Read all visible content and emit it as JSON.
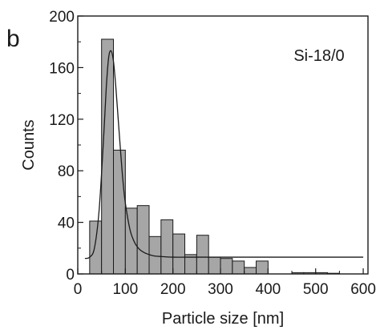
{
  "chart_data": {
    "type": "bar",
    "panel_label": "b",
    "annotation": "Si-18/0",
    "xlabel": "Particle size [nm]",
    "ylabel": "Counts",
    "xlim": [
      0,
      610
    ],
    "ylim": [
      0,
      200
    ],
    "xticks": [
      0,
      100,
      200,
      300,
      400,
      500,
      600
    ],
    "yticks": [
      0,
      40,
      80,
      120,
      160,
      200
    ],
    "bin_width": 25,
    "bins": [
      {
        "x": 37.5,
        "count": 41
      },
      {
        "x": 62.5,
        "count": 182
      },
      {
        "x": 87.5,
        "count": 96
      },
      {
        "x": 112.5,
        "count": 51
      },
      {
        "x": 137.5,
        "count": 53
      },
      {
        "x": 162.5,
        "count": 29
      },
      {
        "x": 187.5,
        "count": 42
      },
      {
        "x": 212.5,
        "count": 31
      },
      {
        "x": 237.5,
        "count": 15
      },
      {
        "x": 262.5,
        "count": 30
      },
      {
        "x": 287.5,
        "count": 13
      },
      {
        "x": 312.5,
        "count": 12
      },
      {
        "x": 337.5,
        "count": 10
      },
      {
        "x": 362.5,
        "count": 5
      },
      {
        "x": 387.5,
        "count": 10
      },
      {
        "x": 462.5,
        "count": 1
      },
      {
        "x": 487.5,
        "count": 1
      },
      {
        "x": 512.5,
        "count": 1
      },
      {
        "x": 537.5,
        "count": 0.5
      }
    ],
    "fit_curve": {
      "type": "lognormal",
      "x": [
        15,
        25,
        35,
        45,
        55,
        60,
        65,
        70,
        75,
        80,
        85,
        90,
        95,
        100,
        110,
        120,
        130,
        140,
        150,
        160,
        175,
        200,
        230,
        260,
        300,
        350,
        400,
        450,
        500,
        550,
        600
      ],
      "y": [
        12,
        13,
        20,
        50,
        110,
        145,
        168,
        173,
        165,
        145,
        120,
        95,
        72,
        55,
        34,
        24,
        19,
        16.5,
        15,
        14,
        13.5,
        13,
        13,
        13,
        13,
        13,
        13,
        13,
        13,
        13,
        13
      ]
    },
    "colors": {
      "bar_fill": "#a6a6a6",
      "bar_stroke": "#1a1a1a",
      "curve": "#1a1a1a",
      "axis": "#1a1a1a"
    },
    "grid": false
  }
}
